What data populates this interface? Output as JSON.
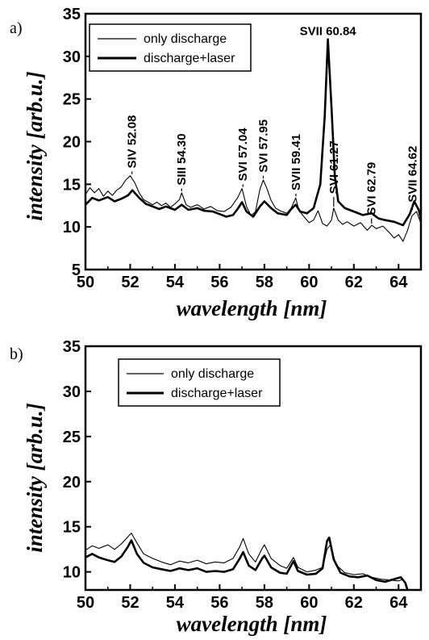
{
  "chart_data": [
    {
      "type": "line",
      "panel_label": "a)",
      "xlabel": "wavelength [nm]",
      "ylabel": "intensity [arb.u.]",
      "xlim": [
        50,
        65
      ],
      "ylim": [
        5,
        35
      ],
      "xticks": [
        50,
        52,
        54,
        56,
        58,
        60,
        62,
        64
      ],
      "yticks": [
        5,
        10,
        15,
        20,
        25,
        30,
        35
      ],
      "legend": {
        "position": "top-left"
      },
      "series": [
        {
          "name": "only discharge",
          "style": "thin",
          "points": [
            [
              50.0,
              13.8
            ],
            [
              50.2,
              14.6
            ],
            [
              50.4,
              14.0
            ],
            [
              50.6,
              14.5
            ],
            [
              50.8,
              13.6
            ],
            [
              51.0,
              14.2
            ],
            [
              51.2,
              13.7
            ],
            [
              51.4,
              14.3
            ],
            [
              51.6,
              14.7
            ],
            [
              51.8,
              15.5
            ],
            [
              52.0,
              16.0
            ],
            [
              52.2,
              15.2
            ],
            [
              52.4,
              14.0
            ],
            [
              52.6,
              13.2
            ],
            [
              52.8,
              12.9
            ],
            [
              53.0,
              12.6
            ],
            [
              53.2,
              12.9
            ],
            [
              53.4,
              12.5
            ],
            [
              53.6,
              12.8
            ],
            [
              53.8,
              12.3
            ],
            [
              54.0,
              12.7
            ],
            [
              54.2,
              13.2
            ],
            [
              54.3,
              14.0
            ],
            [
              54.5,
              12.6
            ],
            [
              54.7,
              12.3
            ],
            [
              55.0,
              12.6
            ],
            [
              55.3,
              12.1
            ],
            [
              55.6,
              12.4
            ],
            [
              55.9,
              11.9
            ],
            [
              56.2,
              11.8
            ],
            [
              56.5,
              12.3
            ],
            [
              56.8,
              13.4
            ],
            [
              57.0,
              14.5
            ],
            [
              57.2,
              12.4
            ],
            [
              57.4,
              11.3
            ],
            [
              57.6,
              11.8
            ],
            [
              57.8,
              14.4
            ],
            [
              57.95,
              15.5
            ],
            [
              58.1,
              14.6
            ],
            [
              58.3,
              13.1
            ],
            [
              58.5,
              12.2
            ],
            [
              58.7,
              11.9
            ],
            [
              59.0,
              11.6
            ],
            [
              59.2,
              12.2
            ],
            [
              59.4,
              13.4
            ],
            [
              59.55,
              11.9
            ],
            [
              59.8,
              11.1
            ],
            [
              60.0,
              10.5
            ],
            [
              60.2,
              10.8
            ],
            [
              60.4,
              11.9
            ],
            [
              60.6,
              10.4
            ],
            [
              60.8,
              10.1
            ],
            [
              61.0,
              10.8
            ],
            [
              61.1,
              12.2
            ],
            [
              61.3,
              10.8
            ],
            [
              61.5,
              10.3
            ],
            [
              61.7,
              10.6
            ],
            [
              62.0,
              10.1
            ],
            [
              62.3,
              10.5
            ],
            [
              62.6,
              9.6
            ],
            [
              62.8,
              10.2
            ],
            [
              63.0,
              9.8
            ],
            [
              63.3,
              10.1
            ],
            [
              63.6,
              9.3
            ],
            [
              63.8,
              8.7
            ],
            [
              64.0,
              9.1
            ],
            [
              64.2,
              8.3
            ],
            [
              64.4,
              9.6
            ],
            [
              64.6,
              11.3
            ],
            [
              64.8,
              11.8
            ],
            [
              65.0,
              10.4
            ]
          ]
        },
        {
          "name": "discharge+laser",
          "style": "thick",
          "points": [
            [
              50.0,
              12.6
            ],
            [
              50.3,
              13.4
            ],
            [
              50.6,
              13.1
            ],
            [
              51.0,
              13.5
            ],
            [
              51.3,
              13.0
            ],
            [
              51.6,
              13.3
            ],
            [
              51.9,
              13.7
            ],
            [
              52.1,
              14.3
            ],
            [
              52.4,
              13.4
            ],
            [
              52.7,
              12.7
            ],
            [
              53.0,
              12.4
            ],
            [
              53.3,
              12.1
            ],
            [
              53.6,
              12.4
            ],
            [
              54.0,
              12.0
            ],
            [
              54.3,
              12.6
            ],
            [
              54.6,
              12.0
            ],
            [
              55.0,
              12.2
            ],
            [
              55.3,
              11.9
            ],
            [
              55.7,
              11.8
            ],
            [
              56.0,
              11.5
            ],
            [
              56.3,
              11.2
            ],
            [
              56.6,
              11.4
            ],
            [
              56.8,
              12.1
            ],
            [
              57.0,
              12.9
            ],
            [
              57.2,
              11.8
            ],
            [
              57.5,
              11.2
            ],
            [
              57.8,
              12.4
            ],
            [
              58.0,
              13.0
            ],
            [
              58.3,
              12.2
            ],
            [
              58.6,
              11.6
            ],
            [
              59.0,
              11.4
            ],
            [
              59.2,
              12.1
            ],
            [
              59.4,
              12.6
            ],
            [
              59.6,
              11.8
            ],
            [
              59.9,
              11.6
            ],
            [
              60.2,
              12.2
            ],
            [
              60.5,
              15.0
            ],
            [
              60.7,
              23.0
            ],
            [
              60.84,
              32.0
            ],
            [
              61.0,
              24.0
            ],
            [
              61.15,
              16.0
            ],
            [
              61.3,
              13.0
            ],
            [
              61.6,
              12.2
            ],
            [
              62.0,
              11.8
            ],
            [
              62.4,
              11.4
            ],
            [
              62.8,
              11.6
            ],
            [
              63.1,
              11.0
            ],
            [
              63.4,
              10.8
            ],
            [
              63.8,
              10.6
            ],
            [
              64.2,
              10.2
            ],
            [
              64.5,
              11.5
            ],
            [
              64.7,
              13.0
            ],
            [
              64.9,
              12.0
            ],
            [
              65.0,
              10.9
            ]
          ]
        }
      ],
      "annotations": [
        {
          "label": "SIV 52.08",
          "x": 52.08,
          "y": 16.0,
          "text_y": 16.5
        },
        {
          "label": "SIII 54.30",
          "x": 54.3,
          "y": 14.0,
          "text_y": 14.5
        },
        {
          "label": "SVI 57.04",
          "x": 57.04,
          "y": 14.5,
          "text_y": 15.0
        },
        {
          "label": "SVI 57.95",
          "x": 57.95,
          "y": 15.5,
          "text_y": 16.0
        },
        {
          "label": "SVII 59.41",
          "x": 59.41,
          "y": 13.4,
          "text_y": 13.9
        },
        {
          "label": "SVI 61.27",
          "x": 61.1,
          "y": 12.2,
          "text_y": 13.5
        },
        {
          "label": "SVI 62.79",
          "x": 62.79,
          "y": 10.2,
          "text_y": 11.0
        },
        {
          "label": "SVII 64.62",
          "x": 64.62,
          "y": 11.8,
          "text_y": 12.5
        },
        {
          "label": "SVII 60.84",
          "x": 60.84,
          "y": 32.0,
          "text_y": 32.3,
          "horizontal": true
        }
      ]
    },
    {
      "type": "line",
      "panel_label": "b)",
      "xlabel": "wavelength  [nm]",
      "ylabel": "intensity  [arb.u.]",
      "xlim": [
        50,
        65
      ],
      "ylim": [
        8,
        35
      ],
      "xticks": [
        50,
        52,
        54,
        56,
        58,
        60,
        62,
        64
      ],
      "yticks": [
        10,
        15,
        20,
        25,
        30,
        35
      ],
      "legend": {
        "position": "top-left"
      },
      "series": [
        {
          "name": "only discharge",
          "style": "thin",
          "points": [
            [
              50.0,
              12.4
            ],
            [
              50.3,
              12.9
            ],
            [
              50.6,
              12.6
            ],
            [
              51.0,
              13.0
            ],
            [
              51.3,
              12.5
            ],
            [
              51.6,
              13.1
            ],
            [
              51.9,
              13.9
            ],
            [
              52.05,
              14.3
            ],
            [
              52.3,
              13.2
            ],
            [
              52.6,
              12.0
            ],
            [
              53.0,
              11.5
            ],
            [
              53.4,
              11.1
            ],
            [
              53.8,
              10.8
            ],
            [
              54.2,
              11.2
            ],
            [
              54.6,
              11.0
            ],
            [
              55.0,
              11.3
            ],
            [
              55.4,
              10.9
            ],
            [
              55.8,
              11.1
            ],
            [
              56.2,
              11.0
            ],
            [
              56.6,
              11.5
            ],
            [
              56.9,
              12.8
            ],
            [
              57.05,
              13.7
            ],
            [
              57.3,
              12.0
            ],
            [
              57.6,
              11.1
            ],
            [
              57.9,
              12.6
            ],
            [
              58.0,
              13.0
            ],
            [
              58.3,
              11.5
            ],
            [
              58.7,
              10.7
            ],
            [
              59.0,
              10.4
            ],
            [
              59.3,
              11.6
            ],
            [
              59.5,
              10.5
            ],
            [
              59.9,
              10.0
            ],
            [
              60.3,
              10.2
            ],
            [
              60.6,
              10.5
            ],
            [
              60.8,
              12.5
            ],
            [
              60.95,
              13.0
            ],
            [
              61.2,
              10.8
            ],
            [
              61.6,
              9.9
            ],
            [
              62.0,
              9.7
            ],
            [
              62.4,
              9.8
            ],
            [
              62.8,
              9.4
            ],
            [
              63.2,
              9.2
            ],
            [
              63.6,
              9.1
            ],
            [
              64.0,
              9.0
            ],
            [
              64.2,
              9.2
            ],
            [
              64.4,
              8.1
            ]
          ]
        },
        {
          "name": "discharge+laser",
          "style": "thick",
          "points": [
            [
              50.0,
              11.6
            ],
            [
              50.3,
              12.0
            ],
            [
              50.6,
              11.6
            ],
            [
              51.0,
              11.3
            ],
            [
              51.3,
              11.1
            ],
            [
              51.6,
              11.7
            ],
            [
              51.9,
              12.8
            ],
            [
              52.05,
              13.5
            ],
            [
              52.3,
              12.0
            ],
            [
              52.6,
              11.0
            ],
            [
              53.0,
              10.5
            ],
            [
              53.4,
              10.3
            ],
            [
              53.8,
              10.1
            ],
            [
              54.2,
              10.4
            ],
            [
              54.6,
              10.2
            ],
            [
              55.0,
              10.4
            ],
            [
              55.4,
              10.0
            ],
            [
              55.8,
              10.1
            ],
            [
              56.2,
              10.0
            ],
            [
              56.6,
              10.3
            ],
            [
              56.9,
              11.5
            ],
            [
              57.05,
              12.2
            ],
            [
              57.3,
              10.7
            ],
            [
              57.6,
              10.2
            ],
            [
              57.9,
              11.5
            ],
            [
              58.0,
              11.8
            ],
            [
              58.3,
              10.5
            ],
            [
              58.7,
              9.9
            ],
            [
              59.0,
              9.8
            ],
            [
              59.3,
              11.2
            ],
            [
              59.5,
              10.1
            ],
            [
              59.9,
              9.7
            ],
            [
              60.3,
              9.8
            ],
            [
              60.6,
              10.4
            ],
            [
              60.8,
              13.4
            ],
            [
              60.9,
              13.8
            ],
            [
              61.1,
              11.4
            ],
            [
              61.4,
              9.9
            ],
            [
              61.8,
              9.5
            ],
            [
              62.2,
              9.4
            ],
            [
              62.6,
              9.6
            ],
            [
              63.0,
              9.1
            ],
            [
              63.4,
              8.9
            ],
            [
              63.8,
              9.2
            ],
            [
              64.1,
              9.4
            ],
            [
              64.3,
              8.8
            ],
            [
              64.4,
              8.0
            ]
          ]
        }
      ],
      "annotations": []
    }
  ]
}
